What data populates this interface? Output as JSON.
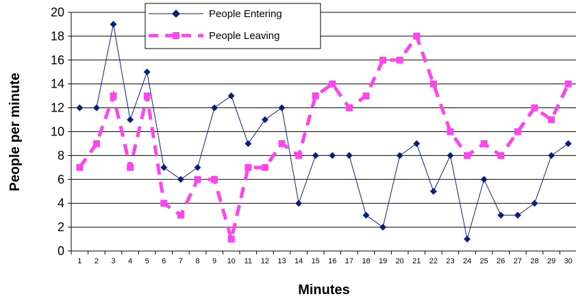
{
  "chart_data": {
    "type": "line",
    "title": "",
    "xlabel": "Minutes",
    "ylabel": "People per minute",
    "x": [
      1,
      2,
      3,
      4,
      5,
      6,
      7,
      8,
      9,
      10,
      11,
      12,
      13,
      14,
      15,
      16,
      17,
      18,
      19,
      20,
      21,
      22,
      23,
      24,
      25,
      26,
      27,
      28,
      29,
      30
    ],
    "ylim": [
      0,
      20
    ],
    "yticks": [
      0,
      2,
      4,
      6,
      8,
      10,
      12,
      14,
      16,
      18,
      20
    ],
    "grid": "horizontal",
    "legend_position": "top-center",
    "series": [
      {
        "name": "People Entering",
        "color": "#0a1f7a",
        "marker": "diamond",
        "line_style": "solid",
        "values": [
          12,
          12,
          19,
          11,
          15,
          7,
          6,
          7,
          12,
          13,
          9,
          11,
          12,
          4,
          8,
          8,
          8,
          3,
          2,
          8,
          9,
          5,
          8,
          1,
          6,
          3,
          3,
          4,
          8,
          9
        ]
      },
      {
        "name": "People Leaving",
        "color": "#ff44ee",
        "marker": "square",
        "line_style": "dashed",
        "values": [
          7,
          9,
          13,
          7,
          13,
          4,
          3,
          6,
          6,
          1,
          7,
          7,
          9,
          8,
          13,
          14,
          12,
          13,
          16,
          16,
          18,
          14,
          10,
          8,
          9,
          8,
          10,
          12,
          11,
          14
        ]
      }
    ]
  }
}
